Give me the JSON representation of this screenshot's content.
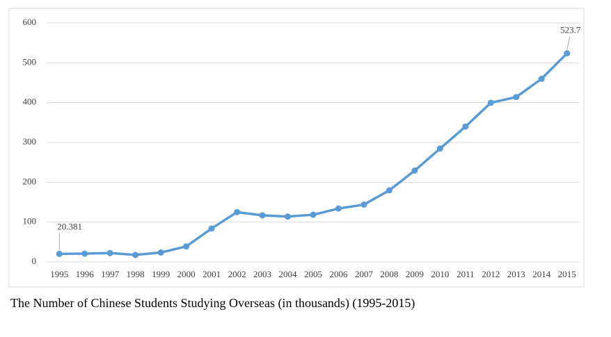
{
  "chart_data": {
    "type": "line",
    "caption": "The Number of Chinese Students Studying Overseas (in thousands) (1995-2015)",
    "categories": [
      "1995",
      "1996",
      "1997",
      "1998",
      "1999",
      "2000",
      "2001",
      "2002",
      "2003",
      "2004",
      "2005",
      "2006",
      "2007",
      "2008",
      "2009",
      "2010",
      "2011",
      "2012",
      "2013",
      "2014",
      "2015"
    ],
    "series": [
      {
        "color": "#5b9bd5",
        "values": [
          20.381,
          20.9,
          22.4,
          17.6,
          23.7,
          39,
          84,
          125,
          117,
          114,
          118.5,
          134,
          144,
          179.8,
          229.3,
          284.7,
          339.7,
          399.6,
          413.9,
          459.8,
          523.7
        ],
        "value_labels": [
          "20.381",
          null,
          null,
          null,
          null,
          null,
          null,
          null,
          null,
          null,
          null,
          null,
          null,
          null,
          null,
          null,
          null,
          null,
          null,
          null,
          "523.7"
        ]
      }
    ],
    "ylim": [
      0,
      600
    ],
    "yticks": [
      0,
      100,
      200,
      300,
      400,
      500,
      600
    ],
    "grid": true
  }
}
